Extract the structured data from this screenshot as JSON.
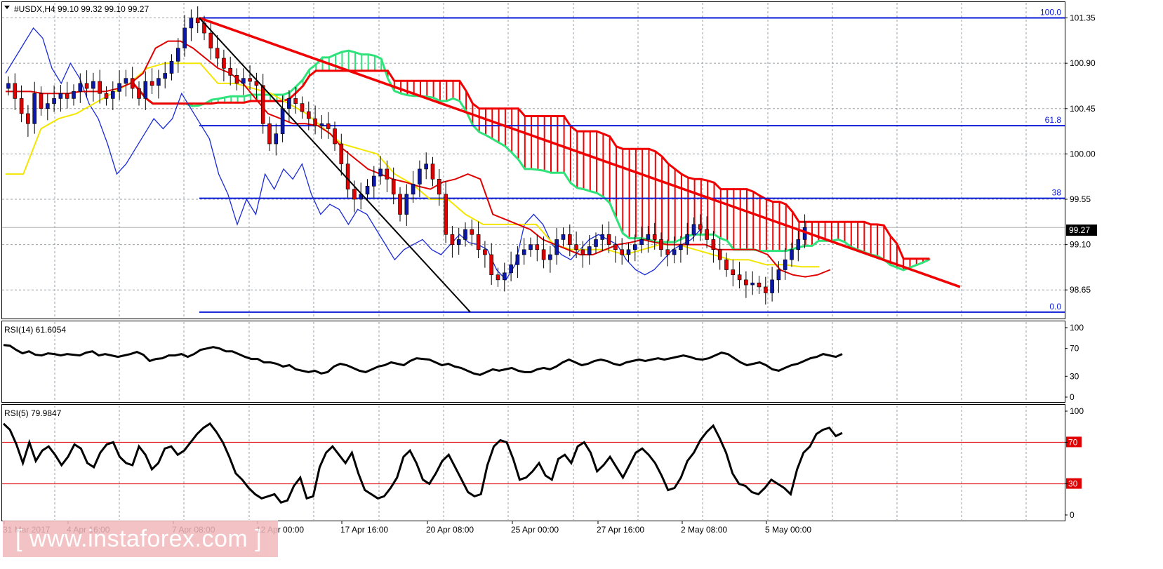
{
  "header": {
    "title": "#USDX,H4  99.10 99.32 99.10 99.27"
  },
  "watermark": {
    "text": "[ www.instaforex.com ]"
  },
  "colors": {
    "bull": "#0b17a8",
    "bear": "#e00000",
    "tenkan": "#e00000",
    "kijun": "#f3e600",
    "chikou": "#1a2bd8",
    "kumo_bull": "#2ee37a",
    "kumo_bear": "#f00000",
    "fib": "#0a1ad6",
    "trend_red": "#f00000",
    "trend_black": "#000000"
  },
  "chart_data": [
    {
      "type": "candlestick",
      "name": "price",
      "symbol": "#USDX",
      "timeframe": "H4",
      "last_price": "99.27",
      "ylim": [
        98.38,
        101.5
      ],
      "y_ticks": [
        "101.35",
        "100.90",
        "100.45",
        "100.00",
        "99.55",
        "99.10",
        "98.65"
      ],
      "x_ticks": [
        "31 Mar 2017",
        "4 Apr 16:00",
        "7 Apr 08:00",
        "12 Apr 00:00",
        "17 Apr 16:00",
        "20 Apr 08:00",
        "25 Apr 00:00",
        "27 Apr 16:00",
        "2 May 08:00",
        "5 May 00:00"
      ],
      "fibonacci": [
        {
          "label": "100.0",
          "value": 101.35
        },
        {
          "label": "61.8",
          "value": 100.28
        },
        {
          "label": "38",
          "value": 99.56
        },
        {
          "label": "0.0",
          "value": 98.43
        }
      ],
      "closes": [
        100.7,
        100.55,
        100.4,
        100.3,
        100.6,
        100.45,
        100.5,
        100.55,
        100.6,
        100.55,
        100.62,
        100.7,
        100.65,
        100.72,
        100.6,
        100.55,
        100.62,
        100.7,
        100.75,
        100.65,
        100.55,
        100.72,
        100.68,
        100.75,
        100.8,
        100.92,
        101.05,
        101.25,
        101.35,
        101.3,
        101.2,
        101.05,
        100.95,
        100.85,
        100.78,
        100.7,
        100.75,
        100.72,
        100.68,
        100.3,
        100.1,
        100.2,
        100.45,
        100.55,
        100.5,
        100.42,
        100.35,
        100.28,
        100.3,
        100.25,
        100.1,
        99.9,
        99.65,
        99.55,
        99.6,
        99.68,
        99.78,
        99.85,
        99.75,
        99.6,
        99.4,
        99.6,
        99.7,
        99.85,
        99.9,
        99.75,
        99.6,
        99.2,
        99.1,
        99.15,
        99.25,
        99.2,
        99.05,
        99.0,
        98.8,
        98.75,
        98.82,
        98.9,
        99.0,
        99.05,
        99.1,
        99.05,
        98.95,
        99.0,
        99.15,
        99.2,
        99.1,
        99.05,
        99.0,
        99.08,
        99.15,
        99.2,
        99.1,
        99.05,
        99.0,
        99.05,
        99.1,
        99.15,
        99.2,
        99.15,
        99.05,
        99.0,
        99.05,
        99.1,
        99.2,
        99.3,
        99.25,
        99.15,
        99.05,
        98.95,
        98.85,
        98.8,
        98.75,
        98.7,
        98.72,
        98.68,
        98.62,
        98.75,
        98.85,
        98.95,
        99.05,
        99.15,
        99.27
      ],
      "chikou": [
        100.8,
        100.95,
        101.1,
        101.25,
        101.15,
        100.85,
        100.7,
        100.9,
        100.75,
        100.5,
        100.35,
        100.1,
        99.8,
        99.9,
        100.05,
        100.2,
        100.35,
        100.25,
        100.35,
        100.6,
        100.45,
        100.3,
        100.15,
        99.8,
        99.6,
        99.3,
        99.55,
        99.4,
        99.8,
        99.65,
        99.85,
        99.75,
        99.9,
        99.6,
        99.4,
        99.5,
        99.45,
        99.3,
        99.45,
        99.4,
        99.25,
        99.1,
        98.95,
        99.05,
        99.1,
        99.15,
        99.05,
        99.0,
        99.1,
        99.2,
        99.12,
        99.1,
        99.05,
        98.85,
        98.75,
        98.9,
        99.3,
        99.4,
        99.3,
        99.1,
        99.0,
        98.95,
        99.05,
        99.15,
        99.2,
        99.15,
        99.1,
        98.95,
        98.85,
        98.8,
        98.85,
        98.95,
        99.05,
        99.1,
        99.15,
        99.25
      ],
      "tenkan": [
        100.62,
        100.62,
        100.62,
        100.6,
        100.6,
        100.6,
        100.62,
        100.62,
        100.62,
        100.65,
        100.7,
        100.8,
        101.05,
        101.12,
        101.12,
        101.05,
        100.95,
        100.85,
        100.8,
        100.7,
        100.55,
        100.4,
        100.35,
        100.3,
        100.3,
        100.28,
        100.2,
        100.05,
        99.95,
        99.85,
        99.8,
        99.75,
        99.72,
        99.68,
        99.65,
        99.72,
        99.75,
        99.8,
        99.75,
        99.4,
        99.35,
        99.3,
        99.25,
        99.15,
        99.1,
        99.05,
        99.0,
        99.0,
        99.05,
        99.1,
        99.12,
        99.15,
        99.12,
        99.1,
        99.1,
        99.1,
        99.1,
        99.05,
        99.05,
        99.05,
        99.05,
        99.0,
        98.85,
        98.8,
        98.78,
        98.8,
        98.85
      ],
      "kijun": [
        99.8,
        99.8,
        100.25,
        100.35,
        100.4,
        100.5,
        100.6,
        100.7,
        100.85,
        100.9,
        100.9,
        100.9,
        100.7,
        100.7,
        100.65,
        100.6,
        100.5,
        100.4,
        100.25,
        100.1,
        100.05,
        100.0,
        99.8,
        99.7,
        99.55,
        99.55,
        99.4,
        99.3,
        99.3,
        99.3,
        99.3,
        99.1,
        99.05,
        99.05,
        99.05,
        99.0,
        99.05,
        99.1,
        99.1,
        99.05,
        99.0,
        98.95,
        98.95,
        98.9,
        98.9,
        98.88,
        98.88
      ]
    },
    {
      "type": "line",
      "name": "RSI(14)",
      "header": "RSI(14) 61.6054",
      "ylim": [
        0,
        100
      ],
      "y_ticks": [
        "100",
        "70",
        "30",
        "0"
      ],
      "values": [
        75,
        74,
        68,
        63,
        66,
        61,
        60,
        63,
        62,
        60,
        62,
        61,
        60,
        64,
        66,
        60,
        62,
        60,
        58,
        60,
        62,
        65,
        61,
        52,
        55,
        56,
        60,
        60,
        62,
        58,
        62,
        68,
        70,
        72,
        70,
        66,
        66,
        62,
        58,
        55,
        55,
        50,
        50,
        48,
        44,
        46,
        40,
        38,
        36,
        38,
        34,
        36,
        44,
        48,
        46,
        42,
        38,
        36,
        40,
        44,
        46,
        50,
        48,
        46,
        52,
        56,
        55,
        54,
        50,
        46,
        48,
        44,
        42,
        38,
        34,
        32,
        36,
        40,
        38,
        40,
        42,
        38,
        36,
        36,
        40,
        42,
        40,
        44,
        50,
        54,
        50,
        46,
        48,
        52,
        54,
        52,
        48,
        46,
        50,
        52,
        54,
        52,
        54,
        56,
        54,
        56,
        58,
        60,
        58,
        55,
        54,
        56,
        60,
        64,
        62,
        56,
        50,
        46,
        48,
        50,
        46,
        40,
        38,
        42,
        46,
        48,
        52,
        56,
        58,
        62,
        60,
        58,
        62
      ]
    },
    {
      "type": "line",
      "name": "RSI(5)",
      "header": "RSI(5) 79.9847",
      "ylim": [
        0,
        100
      ],
      "y_ticks": [
        "100",
        "70",
        "30",
        "0"
      ],
      "levels": [
        {
          "label": "70",
          "value": 70
        },
        {
          "label": "30",
          "value": 30
        }
      ],
      "values": [
        88,
        82,
        68,
        50,
        70,
        52,
        62,
        66,
        58,
        48,
        56,
        68,
        64,
        50,
        46,
        60,
        68,
        70,
        56,
        50,
        48,
        66,
        58,
        44,
        50,
        64,
        66,
        58,
        62,
        70,
        78,
        84,
        88,
        80,
        70,
        56,
        40,
        34,
        26,
        20,
        16,
        18,
        20,
        12,
        14,
        28,
        36,
        16,
        18,
        46,
        60,
        66,
        58,
        50,
        60,
        40,
        24,
        20,
        16,
        18,
        26,
        36,
        56,
        62,
        50,
        34,
        30,
        40,
        52,
        58,
        46,
        34,
        22,
        18,
        20,
        48,
        66,
        72,
        70,
        54,
        34,
        36,
        42,
        50,
        38,
        34,
        54,
        58,
        50,
        66,
        70,
        60,
        42,
        48,
        56,
        46,
        36,
        48,
        60,
        64,
        58,
        50,
        38,
        24,
        26,
        36,
        52,
        60,
        72,
        80,
        86,
        74,
        60,
        40,
        30,
        28,
        22,
        20,
        26,
        34,
        30,
        26,
        20,
        44,
        60,
        66,
        78,
        82,
        84,
        76,
        79
      ]
    }
  ]
}
